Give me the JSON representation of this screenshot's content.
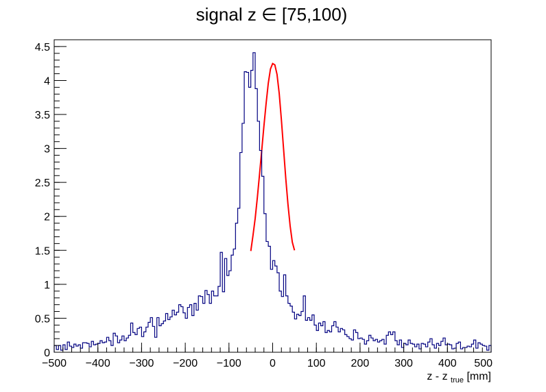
{
  "chart_data": {
    "type": "bar",
    "title": "signal z ∈ [75,100)",
    "xlabel_main": "z - z",
    "xlabel_sub": "true",
    "xlabel_unit": "[mm]",
    "xlim": [
      -500,
      500
    ],
    "ylim": [
      0,
      4.6
    ],
    "x_ticks": [
      -500,
      -400,
      -300,
      -200,
      -100,
      0,
      100,
      200,
      300,
      400,
      500
    ],
    "x_tick_labels": [
      "−500",
      "−400",
      "−300",
      "−200",
      "−100",
      "0",
      "100",
      "200",
      "300",
      "400",
      "500"
    ],
    "y_ticks": [
      0,
      0.5,
      1,
      1.5,
      2,
      2.5,
      3,
      3.5,
      4,
      4.5
    ],
    "y_tick_labels": [
      "0",
      "0.5",
      "1",
      "1.5",
      "2",
      "2.5",
      "3",
      "3.5",
      "4",
      "4.5"
    ],
    "grid": false,
    "legend": "none",
    "colors": {
      "histogram": "#000080",
      "fit": "#ff0000",
      "axis": "#000000"
    },
    "series": [
      {
        "kind": "histogram",
        "bin_width": 5,
        "x_start": -500,
        "values": [
          0.1,
          0.04,
          0.1,
          0.03,
          0.11,
          0.04,
          0.15,
          0.09,
          0.07,
          0.12,
          0.09,
          0.11,
          0.06,
          0.14,
          0.14,
          0.13,
          0.08,
          0.16,
          0.11,
          0.12,
          0.13,
          0.17,
          0.14,
          0.15,
          0.22,
          0.17,
          0.1,
          0.28,
          0.24,
          0.14,
          0.18,
          0.24,
          0.17,
          0.21,
          0.25,
          0.43,
          0.29,
          0.26,
          0.35,
          0.37,
          0.23,
          0.3,
          0.37,
          0.44,
          0.51,
          0.38,
          0.22,
          0.51,
          0.39,
          0.42,
          0.46,
          0.57,
          0.48,
          0.52,
          0.62,
          0.55,
          0.59,
          0.7,
          0.67,
          0.58,
          0.5,
          0.66,
          0.7,
          0.54,
          0.72,
          0.62,
          0.83,
          0.82,
          0.72,
          0.91,
          0.85,
          0.72,
          0.9,
          0.83,
          0.83,
          0.97,
          1.47,
          0.89,
          1.38,
          1.13,
          1.2,
          1.43,
          1.52,
          1.9,
          2.12,
          2.94,
          3.37,
          4.13,
          4.12,
          3.9,
          4.15,
          4.41,
          3.88,
          3.4,
          2.97,
          2.59,
          2.04,
          1.63,
          1.56,
          1.22,
          1.35,
          1.27,
          1.17,
          0.9,
          0.82,
          1.14,
          0.83,
          0.72,
          0.68,
          0.59,
          0.49,
          0.56,
          0.54,
          0.6,
          0.83,
          0.47,
          0.51,
          0.47,
          0.55,
          0.4,
          0.32,
          0.43,
          0.39,
          0.45,
          0.29,
          0.32,
          0.3,
          0.39,
          0.45,
          0.37,
          0.3,
          0.35,
          0.33,
          0.26,
          0.23,
          0.2,
          0.18,
          0.33,
          0.29,
          0.2,
          0.21,
          0.19,
          0.12,
          0.17,
          0.25,
          0.21,
          0.17,
          0.19,
          0.15,
          0.17,
          0.19,
          0.12,
          0.25,
          0.3,
          0.26,
          0.3,
          0.17,
          0.11,
          0.18,
          0.07,
          0.13,
          0.11,
          0.18,
          0.13,
          0.12,
          0.08,
          0.12,
          0.05,
          0.13,
          0.12,
          0.08,
          0.15,
          0.2,
          0.11,
          0.06,
          0.13,
          0.1,
          0.16,
          0.21,
          0.11,
          0.12,
          0.11,
          0.05,
          0.06,
          0.13,
          0.15,
          0.05,
          0.07,
          0.07,
          0.09,
          0.08,
          0.12,
          0.18,
          0.06,
          0.14,
          0.12,
          0.1,
          0.09,
          0.03,
          0.1
        ]
      },
      {
        "kind": "fit",
        "x_range": [
          -50,
          50
        ],
        "points": [
          [
            -50,
            1.49
          ],
          [
            -45,
            1.72
          ],
          [
            -40,
            1.97
          ],
          [
            -35,
            2.28
          ],
          [
            -30,
            2.62
          ],
          [
            -25,
            2.97
          ],
          [
            -20,
            3.33
          ],
          [
            -15,
            3.66
          ],
          [
            -10,
            3.96
          ],
          [
            -5,
            4.17
          ],
          [
            0,
            4.25
          ],
          [
            5,
            4.23
          ],
          [
            10,
            4.09
          ],
          [
            15,
            3.81
          ],
          [
            20,
            3.42
          ],
          [
            25,
            2.99
          ],
          [
            30,
            2.56
          ],
          [
            35,
            2.18
          ],
          [
            40,
            1.86
          ],
          [
            45,
            1.62
          ],
          [
            50,
            1.5
          ]
        ]
      }
    ]
  }
}
